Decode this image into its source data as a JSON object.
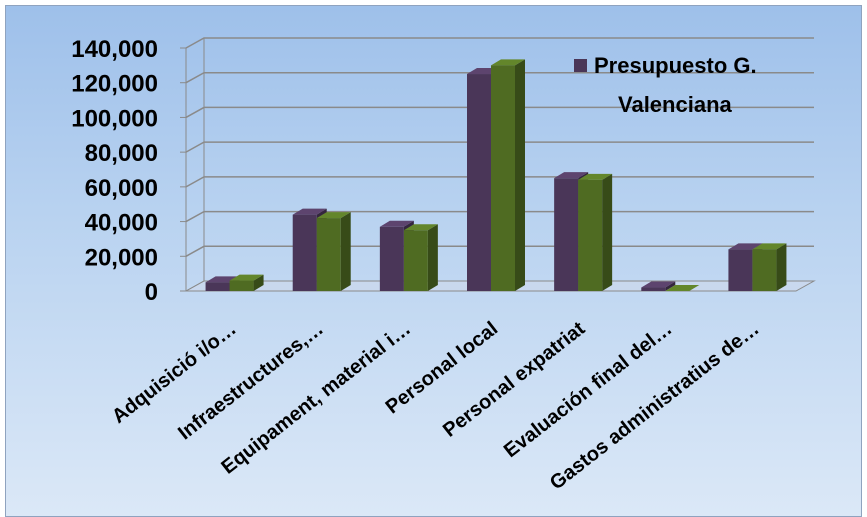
{
  "chart_data": {
    "type": "bar",
    "three_d": true,
    "categories": [
      "Adquisició i/o…",
      "Infraestructures,…",
      "Equipament, material i…",
      "Personal local",
      "Personal expatriat",
      "Evaluación final del…",
      "Gastos administratius de…"
    ],
    "series": [
      {
        "name": "Presupuesto G. Valenciana",
        "color": "#4a3658",
        "values": [
          5000,
          44000,
          37000,
          125000,
          65000,
          2000,
          24000
        ]
      },
      {
        "name": "",
        "color": "#4f6b22",
        "values": [
          6000,
          42000,
          35000,
          130000,
          64000,
          0,
          24000
        ]
      }
    ],
    "ylim": [
      0,
      140000
    ],
    "yticks": [
      "0",
      "20,000",
      "40,000",
      "60,000",
      "80,000",
      "100,000",
      "120,000",
      "140,000"
    ],
    "grid": true,
    "legend": {
      "position": "top-right",
      "lines": [
        "Presupuesto G.",
        "Valenciana"
      ]
    }
  }
}
